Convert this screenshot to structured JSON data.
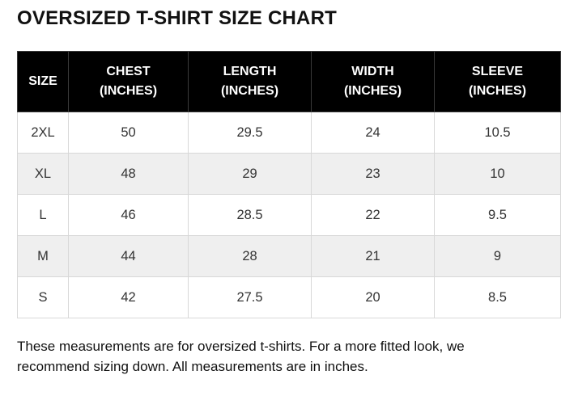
{
  "title": "OVERSIZED T-SHIRT SIZE CHART",
  "table": {
    "headers": [
      {
        "line1": "SIZE",
        "line2": ""
      },
      {
        "line1": "CHEST",
        "line2": "(INCHES)"
      },
      {
        "line1": "LENGTH",
        "line2": "(INCHES)"
      },
      {
        "line1": "WIDTH",
        "line2": "(INCHES)"
      },
      {
        "line1": "SLEEVE",
        "line2": "(INCHES)"
      }
    ],
    "rows": [
      [
        "2XL",
        "50",
        "29.5",
        "24",
        "10.5"
      ],
      [
        "XL",
        "48",
        "29",
        "23",
        "10"
      ],
      [
        "L",
        "46",
        "28.5",
        "22",
        "9.5"
      ],
      [
        "M",
        "44",
        "28",
        "21",
        "9"
      ],
      [
        "S",
        "42",
        "27.5",
        "20",
        "8.5"
      ]
    ]
  },
  "note": "These measurements are for oversized t-shirts. For a more fitted look, we recommend sizing down. All measurements are in inches.",
  "colors": {
    "header_background": "#000000",
    "header_text": "#ffffff",
    "row_alt_background": "#efefef",
    "border": "#d8d8d8"
  }
}
